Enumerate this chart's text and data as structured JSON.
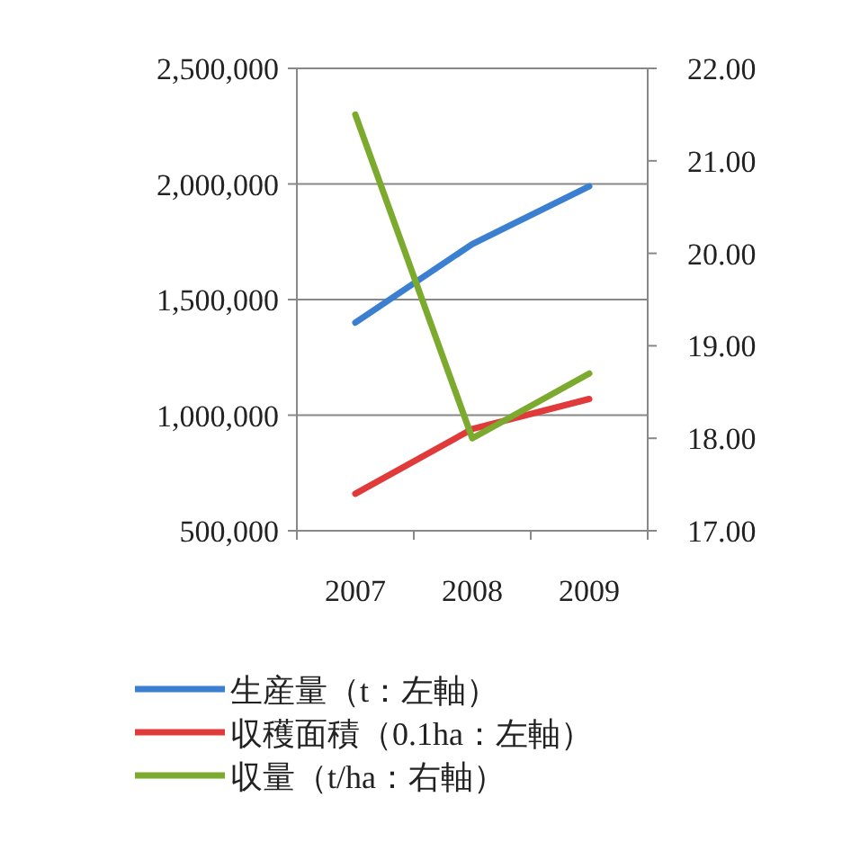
{
  "chart_data": {
    "type": "line",
    "categories": [
      "2007",
      "2008",
      "2009"
    ],
    "series": [
      {
        "name": "生産量（t：左軸）",
        "color": "#3a7fd0",
        "values": [
          1400000,
          1740000,
          1990000
        ]
      },
      {
        "name": "収穫面積（0.1ha：左軸）",
        "color": "#e03a3a",
        "values": [
          660000,
          940000,
          1070000
        ]
      },
      {
        "name": "収量（t/ha：右軸）",
        "color": "#7caa2e",
        "values": [
          21.5,
          18.0,
          18.7
        ],
        "axis": "y2"
      }
    ],
    "ylim": [
      500000,
      2500000
    ],
    "yticks": [
      {
        "value": 500000,
        "label": "500,000"
      },
      {
        "value": 1000000,
        "label": "1,000,000"
      },
      {
        "value": 1500000,
        "label": "1,500,000"
      },
      {
        "value": 2000000,
        "label": "2,000,000"
      },
      {
        "value": 2500000,
        "label": "2,500,000"
      }
    ],
    "y2lim": [
      17,
      22
    ],
    "y2ticks": [
      {
        "value": 17,
        "label": "17.00"
      },
      {
        "value": 18,
        "label": "18.00"
      },
      {
        "value": 19,
        "label": "19.00"
      },
      {
        "value": 20,
        "label": "20.00"
      },
      {
        "value": 21,
        "label": "21.00"
      },
      {
        "value": 22,
        "label": "22.00"
      }
    ],
    "grid": "y",
    "legend": "bottom"
  }
}
